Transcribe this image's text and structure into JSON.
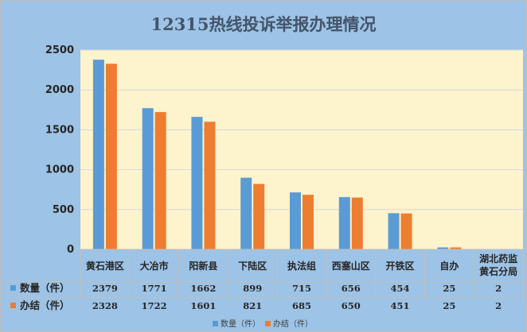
{
  "chart_data": {
    "type": "bar",
    "title": "12315热线投诉举报办理情况",
    "categories": [
      "黄石港区",
      "大冶市",
      "阳新县",
      "下陆区",
      "执法组",
      "西塞山区",
      "开铁区",
      "自办",
      "湖北药监黄石分局"
    ],
    "category_display": [
      [
        "黄石港区"
      ],
      [
        "大冶市"
      ],
      [
        "阳新县"
      ],
      [
        "下陆区"
      ],
      [
        "执法组"
      ],
      [
        "西塞山区"
      ],
      [
        "开铁区"
      ],
      [
        "自办"
      ],
      [
        "湖北药监",
        "黄石分局"
      ]
    ],
    "series": [
      {
        "name": "数量（件）",
        "values": [
          2379,
          1771,
          1662,
          899,
          715,
          656,
          454,
          25,
          2
        ],
        "color": "#5b9bd5"
      },
      {
        "name": "办结（件）",
        "values": [
          2328,
          1722,
          1601,
          821,
          685,
          650,
          451,
          25,
          2
        ],
        "color": "#ed7d31"
      }
    ],
    "table_row_labels": [
      "数量（件）",
      "办结（件）"
    ],
    "legend_labels": [
      "数量（件）",
      "办结（件）"
    ],
    "ylim": [
      0,
      2500
    ],
    "yticks": [
      0,
      500,
      1000,
      1500,
      2000,
      2500
    ],
    "xlabel": "",
    "ylabel": "",
    "grid": true,
    "legend_position": "bottom",
    "data_table": true,
    "colors": {
      "background": "#9dc3e6",
      "plot_area": "#fdf3cd",
      "gridline": "#d9d9d9",
      "axis": "#bfbfbf",
      "title": "#44546a"
    }
  }
}
